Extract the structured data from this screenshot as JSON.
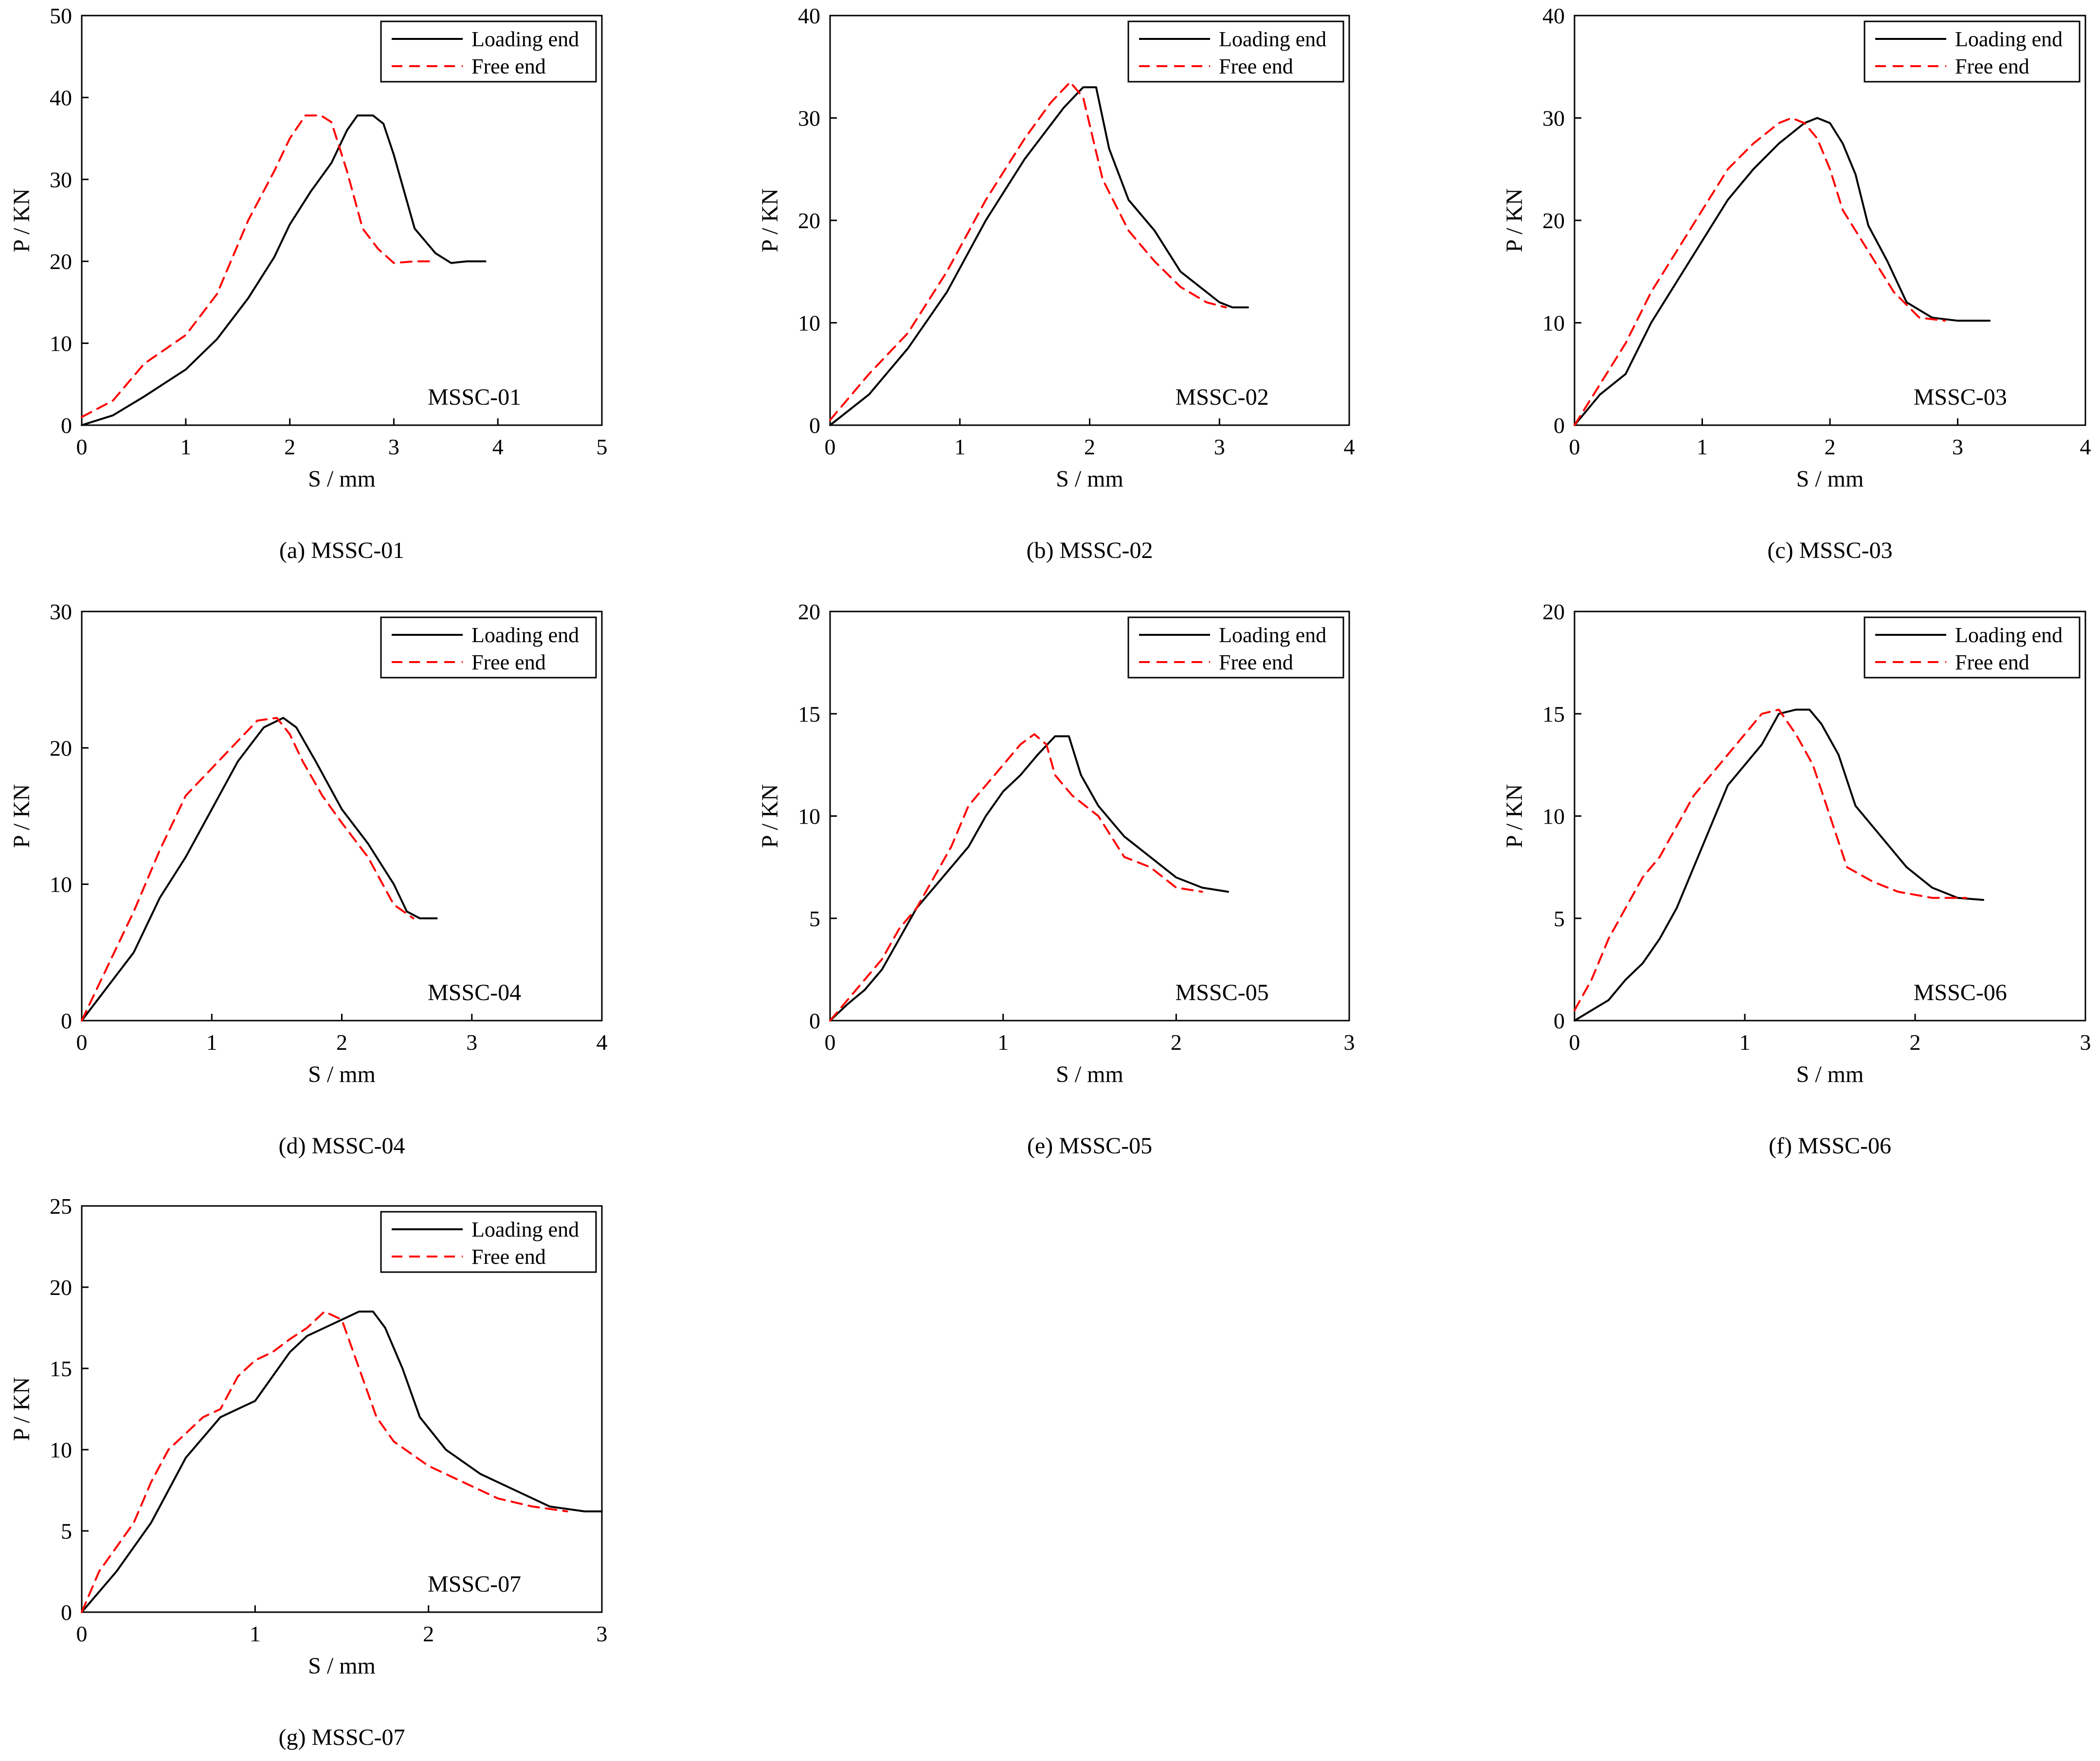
{
  "figure": {
    "legend": {
      "loading": "Loading end",
      "free": "Free end"
    },
    "colors": {
      "loading": "#000000",
      "free": "#ff0000",
      "axis": "#000000"
    }
  },
  "chart_data": [
    {
      "type": "line",
      "caption": "(a) MSSC-01",
      "specimen": "MSSC-01",
      "xlabel": "S / mm",
      "ylabel": "P / KN",
      "xlim": [
        0,
        5
      ],
      "ylim": [
        0,
        50
      ],
      "xticks": [
        0,
        1,
        2,
        3,
        4,
        5
      ],
      "yticks": [
        0,
        10,
        20,
        30,
        40,
        50
      ],
      "series": [
        {
          "name": "Loading end",
          "x": [
            0,
            0.3,
            0.6,
            1.0,
            1.3,
            1.6,
            1.85,
            2.0,
            2.2,
            2.4,
            2.55,
            2.65,
            2.8,
            2.9,
            3.0,
            3.1,
            3.2,
            3.4,
            3.55,
            3.7,
            3.88
          ],
          "y": [
            0,
            1.2,
            3.5,
            6.8,
            10.5,
            15.5,
            20.5,
            24.5,
            28.5,
            32,
            36,
            37.8,
            37.8,
            36.8,
            33,
            28.5,
            24,
            21,
            19.8,
            20,
            20
          ]
        },
        {
          "name": "Free end",
          "x": [
            0,
            0.3,
            0.6,
            1.0,
            1.3,
            1.6,
            1.85,
            2.0,
            2.15,
            2.3,
            2.4,
            2.55,
            2.7,
            2.85,
            3.0,
            3.2,
            3.4
          ],
          "y": [
            1,
            3,
            7.5,
            11,
            16,
            25,
            31,
            35,
            37.8,
            37.8,
            37,
            31,
            24,
            21.5,
            19.8,
            20,
            20
          ]
        }
      ]
    },
    {
      "type": "line",
      "caption": "(b) MSSC-02",
      "specimen": "MSSC-02",
      "xlabel": "S / mm",
      "ylabel": "P / KN",
      "xlim": [
        0,
        4
      ],
      "ylim": [
        0,
        40
      ],
      "xticks": [
        0,
        1,
        2,
        3,
        4
      ],
      "yticks": [
        0,
        10,
        20,
        30,
        40
      ],
      "series": [
        {
          "name": "Loading end",
          "x": [
            0,
            0.3,
            0.6,
            0.9,
            1.2,
            1.5,
            1.8,
            1.95,
            2.05,
            2.15,
            2.3,
            2.5,
            2.7,
            2.9,
            3.0,
            3.1,
            3.22
          ],
          "y": [
            0,
            3,
            7.5,
            13,
            20,
            26,
            31,
            33,
            33,
            27,
            22,
            19,
            15,
            13,
            12,
            11.5,
            11.5
          ]
        },
        {
          "name": "Free end",
          "x": [
            0,
            0.3,
            0.6,
            0.9,
            1.2,
            1.5,
            1.7,
            1.85,
            1.95,
            2.1,
            2.3,
            2.5,
            2.7,
            2.9,
            3.05
          ],
          "y": [
            0.5,
            5,
            9,
            15,
            22,
            28,
            31.5,
            33.5,
            32,
            24,
            19,
            16,
            13.5,
            12,
            11.5
          ]
        }
      ]
    },
    {
      "type": "line",
      "caption": "(c) MSSC-03",
      "specimen": "MSSC-03",
      "xlabel": "S / mm",
      "ylabel": "P / KN",
      "xlim": [
        0,
        4
      ],
      "ylim": [
        0,
        40
      ],
      "xticks": [
        0,
        1,
        2,
        3,
        4
      ],
      "yticks": [
        0,
        10,
        20,
        30,
        40
      ],
      "series": [
        {
          "name": "Loading end",
          "x": [
            0,
            0.2,
            0.4,
            0.6,
            0.8,
            1.0,
            1.2,
            1.4,
            1.6,
            1.8,
            1.9,
            2.0,
            2.1,
            2.2,
            2.3,
            2.45,
            2.6,
            2.8,
            3.0,
            3.25
          ],
          "y": [
            0,
            3,
            5,
            10,
            14,
            18,
            22,
            25,
            27.5,
            29.5,
            30,
            29.5,
            27.5,
            24.5,
            19.5,
            16,
            12,
            10.5,
            10.2,
            10.2
          ]
        },
        {
          "name": "Free end",
          "x": [
            0,
            0.2,
            0.4,
            0.6,
            0.8,
            1.0,
            1.2,
            1.4,
            1.6,
            1.7,
            1.8,
            1.9,
            2.0,
            2.1,
            2.3,
            2.5,
            2.7,
            2.9
          ],
          "y": [
            0,
            4,
            8,
            13,
            17,
            21,
            25,
            27.5,
            29.5,
            30,
            29.5,
            28,
            25,
            21,
            17,
            13,
            10.5,
            10.2
          ]
        }
      ]
    },
    {
      "type": "line",
      "caption": "(d) MSSC-04",
      "specimen": "MSSC-04",
      "xlabel": "S / mm",
      "ylabel": "P / KN",
      "xlim": [
        0,
        4
      ],
      "ylim": [
        0,
        30
      ],
      "xticks": [
        0,
        1,
        2,
        3,
        4
      ],
      "yticks": [
        0,
        10,
        20,
        30
      ],
      "series": [
        {
          "name": "Loading end",
          "x": [
            0,
            0.2,
            0.4,
            0.6,
            0.8,
            1.0,
            1.2,
            1.4,
            1.55,
            1.65,
            1.8,
            2.0,
            2.2,
            2.4,
            2.5,
            2.6,
            2.73
          ],
          "y": [
            0,
            2.5,
            5,
            9,
            12,
            15.5,
            19,
            21.5,
            22.2,
            21.5,
            19,
            15.5,
            13,
            10,
            8,
            7.5,
            7.5
          ]
        },
        {
          "name": "Free end",
          "x": [
            0,
            0.2,
            0.4,
            0.6,
            0.8,
            1.0,
            1.2,
            1.35,
            1.5,
            1.6,
            1.7,
            1.85,
            2.0,
            2.2,
            2.4,
            2.55
          ],
          "y": [
            0,
            4,
            8,
            12.5,
            16.5,
            18.5,
            20.5,
            22,
            22.2,
            21,
            19,
            16.5,
            14.5,
            12,
            8.5,
            7.5
          ]
        }
      ]
    },
    {
      "type": "line",
      "caption": "(e) MSSC-05",
      "specimen": "MSSC-05",
      "xlabel": "S / mm",
      "ylabel": "P / KN",
      "xlim": [
        0,
        3
      ],
      "ylim": [
        0,
        20
      ],
      "xticks": [
        0,
        1,
        2,
        3
      ],
      "yticks": [
        0,
        5,
        10,
        15,
        20
      ],
      "series": [
        {
          "name": "Loading end",
          "x": [
            0,
            0.1,
            0.2,
            0.3,
            0.4,
            0.5,
            0.6,
            0.7,
            0.8,
            0.9,
            1.0,
            1.1,
            1.2,
            1.3,
            1.38,
            1.45,
            1.55,
            1.7,
            1.85,
            2.0,
            2.15,
            2.3
          ],
          "y": [
            0,
            0.8,
            1.5,
            2.5,
            4,
            5.5,
            6.5,
            7.5,
            8.5,
            10,
            11.2,
            12,
            13,
            13.9,
            13.9,
            12,
            10.5,
            9,
            8,
            7,
            6.5,
            6.3
          ]
        },
        {
          "name": "Free end",
          "x": [
            0,
            0.1,
            0.2,
            0.3,
            0.4,
            0.5,
            0.6,
            0.7,
            0.8,
            0.9,
            1.0,
            1.1,
            1.18,
            1.25,
            1.3,
            1.4,
            1.55,
            1.7,
            1.85,
            2.0,
            2.15
          ],
          "y": [
            0,
            1,
            2,
            3,
            4.5,
            5.5,
            7,
            8.5,
            10.5,
            11.5,
            12.5,
            13.5,
            14,
            13.5,
            12,
            11,
            10,
            8,
            7.5,
            6.5,
            6.3
          ]
        }
      ]
    },
    {
      "type": "line",
      "caption": "(f) MSSC-06",
      "specimen": "MSSC-06",
      "xlabel": "S / mm",
      "ylabel": "P / KN",
      "xlim": [
        0,
        3
      ],
      "ylim": [
        0,
        20
      ],
      "xticks": [
        0,
        1,
        2,
        3
      ],
      "yticks": [
        0,
        5,
        10,
        15,
        20
      ],
      "series": [
        {
          "name": "Loading end",
          "x": [
            0,
            0.2,
            0.3,
            0.4,
            0.5,
            0.6,
            0.7,
            0.8,
            0.9,
            1.0,
            1.1,
            1.2,
            1.3,
            1.38,
            1.45,
            1.55,
            1.65,
            1.8,
            1.95,
            2.1,
            2.25,
            2.4
          ],
          "y": [
            0,
            1,
            2,
            2.8,
            4,
            5.5,
            7.5,
            9.5,
            11.5,
            12.5,
            13.5,
            15,
            15.2,
            15.2,
            14.5,
            13,
            10.5,
            9,
            7.5,
            6.5,
            6,
            5.9
          ]
        },
        {
          "name": "Free end",
          "x": [
            0,
            0.1,
            0.2,
            0.3,
            0.4,
            0.5,
            0.6,
            0.7,
            0.8,
            0.9,
            1.0,
            1.1,
            1.2,
            1.3,
            1.4,
            1.5,
            1.6,
            1.75,
            1.9,
            2.1,
            2.3
          ],
          "y": [
            0.5,
            2,
            4,
            5.5,
            7,
            8,
            9.5,
            11,
            12,
            13,
            14,
            15,
            15.2,
            14,
            12.5,
            10,
            7.5,
            6.8,
            6.3,
            6,
            6
          ]
        }
      ]
    },
    {
      "type": "line",
      "caption": "(g) MSSC-07",
      "specimen": "MSSC-07",
      "xlabel": "S / mm",
      "ylabel": "P / KN",
      "xlim": [
        0,
        3
      ],
      "ylim": [
        0,
        25
      ],
      "xticks": [
        0,
        1,
        2,
        3
      ],
      "yticks": [
        0,
        5,
        10,
        15,
        20,
        25
      ],
      "series": [
        {
          "name": "Loading end",
          "x": [
            0,
            0.2,
            0.4,
            0.5,
            0.6,
            0.8,
            1.0,
            1.1,
            1.2,
            1.3,
            1.4,
            1.5,
            1.6,
            1.68,
            1.75,
            1.85,
            1.95,
            2.1,
            2.3,
            2.5,
            2.7,
            2.9,
            3.0
          ],
          "y": [
            0,
            2.5,
            5.5,
            7.5,
            9.5,
            12,
            13,
            14.5,
            16,
            17,
            17.5,
            18,
            18.5,
            18.5,
            17.5,
            15,
            12,
            10,
            8.5,
            7.5,
            6.5,
            6.2,
            6.2
          ]
        },
        {
          "name": "Free end",
          "x": [
            0,
            0.1,
            0.2,
            0.3,
            0.4,
            0.5,
            0.6,
            0.7,
            0.8,
            0.9,
            1.0,
            1.1,
            1.2,
            1.3,
            1.4,
            1.5,
            1.6,
            1.7,
            1.8,
            2.0,
            2.2,
            2.4,
            2.6,
            2.8
          ],
          "y": [
            0,
            2.5,
            4,
            5.5,
            8,
            10,
            11,
            12,
            12.5,
            14.5,
            15.5,
            16,
            16.8,
            17.5,
            18.5,
            18,
            15,
            12,
            10.5,
            9,
            8,
            7,
            6.5,
            6.2
          ]
        }
      ]
    }
  ]
}
